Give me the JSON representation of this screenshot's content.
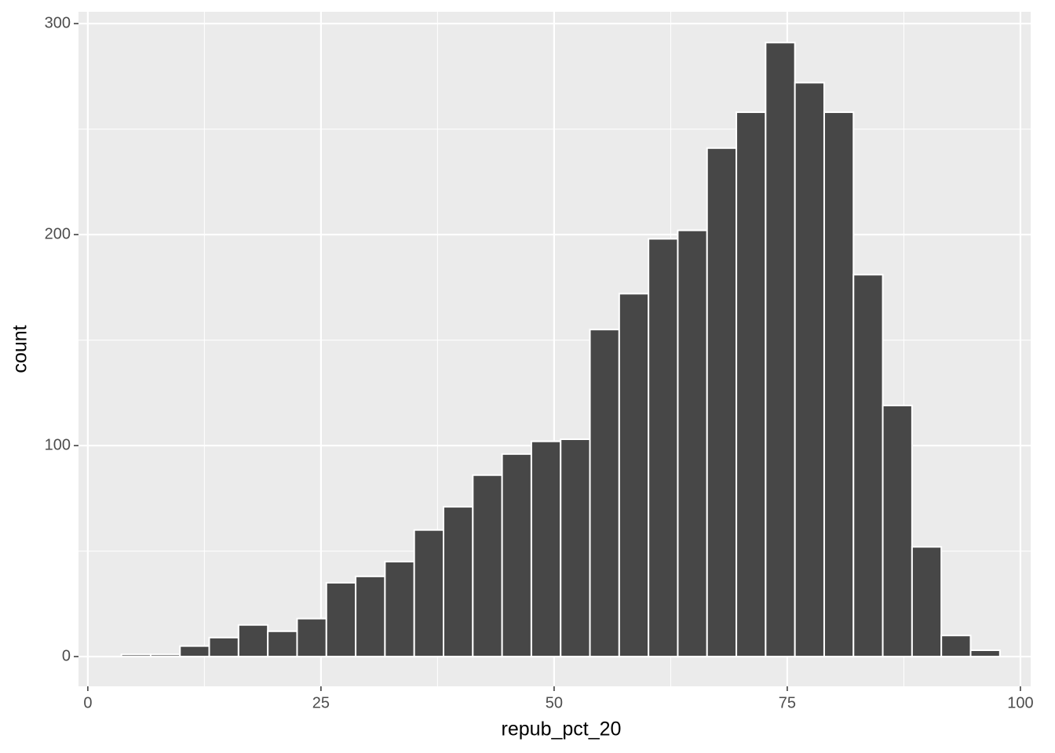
{
  "chart_data": {
    "type": "histogram",
    "x_label": "repub_pct_20",
    "y_label": "count",
    "bins": [
      3.6,
      6.74,
      9.88,
      13.02,
      16.16,
      19.3,
      22.44,
      25.58,
      28.72,
      31.86,
      35,
      38.14,
      41.28,
      44.42,
      47.56,
      50.7,
      53.84,
      56.98,
      60.12,
      63.26,
      66.4,
      69.54,
      72.68,
      75.82,
      78.96,
      82.1,
      85.24,
      88.38,
      91.52,
      94.66,
      97.8
    ],
    "values": [
      1,
      1,
      5,
      9,
      15,
      12,
      18,
      35,
      38,
      45,
      60,
      71,
      86,
      96,
      102,
      103,
      155,
      172,
      198,
      202,
      241,
      258,
      291,
      272,
      258,
      181,
      119,
      52,
      10,
      3
    ],
    "color": "#474747",
    "xlim": [
      -1,
      101.1
    ],
    "ylim": [
      -14.1,
      305.6
    ],
    "xticks": [
      0,
      25,
      50,
      75,
      100
    ],
    "yticks": [
      0,
      100,
      200,
      300
    ],
    "grid": true
  }
}
